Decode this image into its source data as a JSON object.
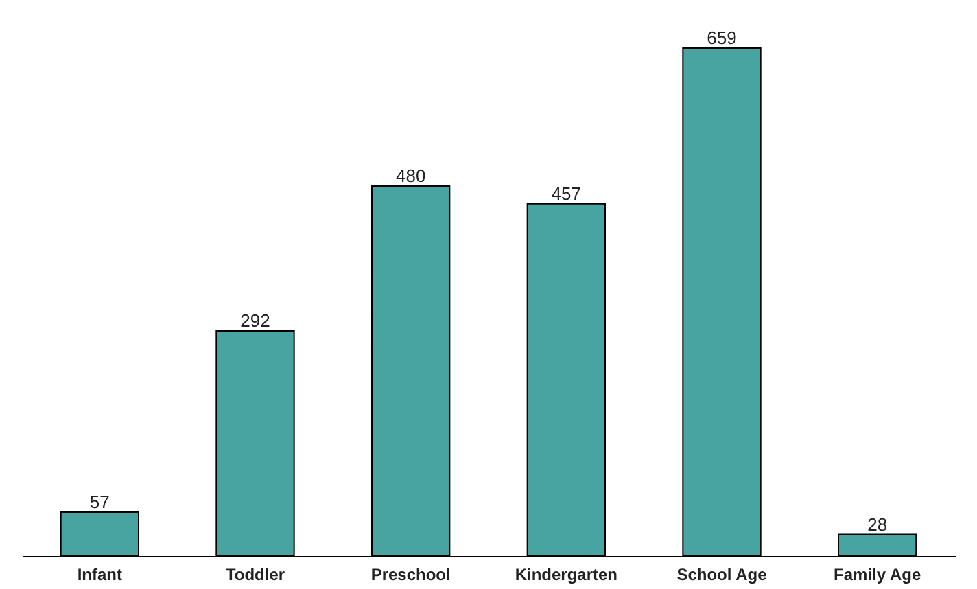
{
  "chart_data": {
    "type": "bar",
    "categories": [
      "Infant",
      "Toddler",
      "Preschool",
      "Kindergarten",
      "School Age",
      "Family Age"
    ],
    "values": [
      57,
      292,
      480,
      457,
      659,
      28
    ],
    "color": "#48a4a0",
    "data_labels": true
  }
}
